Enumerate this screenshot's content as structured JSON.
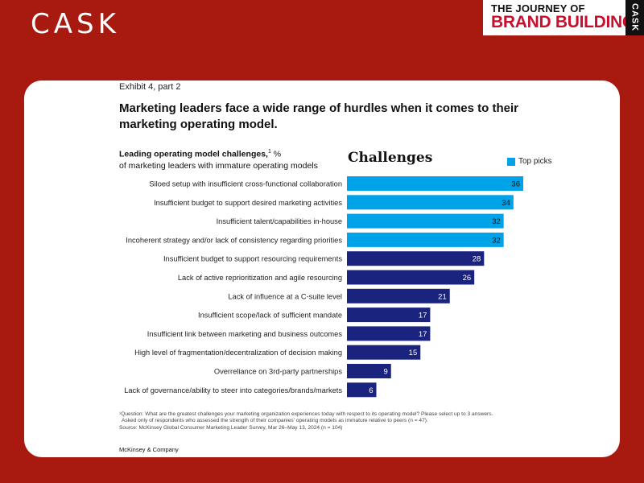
{
  "header": {
    "logo_text": "CASK",
    "brand_line1": "THE JOURNEY OF",
    "brand_line2": "BRAND BUILDING",
    "brand_side": "CASK"
  },
  "exhibit": {
    "label": "Exhibit 4, part 2",
    "headline": "Marketing leaders face a wide range of hurdles when it comes to their marketing operating model."
  },
  "chart_data": {
    "type": "bar",
    "orientation": "horizontal",
    "title": "Challenges",
    "subtitle_bold": "Leading operating model challenges,",
    "subtitle_sup": "1",
    "subtitle_unit": " %",
    "subtitle_line2": "of marketing leaders with immature operating models",
    "legend": [
      {
        "name": "Top picks",
        "color": "#00a3e8"
      }
    ],
    "legend_position": "top-right",
    "categories": [
      "Siloed setup with insufficient cross-functional collaboration",
      "Insufficient budget to support desired marketing activities",
      "Insufficient talent/capabilities in-house",
      "Incoherent strategy and/or lack of consistency regarding priorities",
      "Insufficient budget to support resourcing requirements",
      "Lack of active reprioritization and agile resourcing",
      "Lack of influence at a C-suite level",
      "Insufficient scope/lack of sufficient mandate",
      "Insufficient link between marketing and business outcomes",
      "High level of fragmentation/decentralization of decision making",
      "Overreliance on 3rd-party partnerships",
      "Lack of governance/ability to steer into categories/brands/markets"
    ],
    "values": [
      36,
      34,
      32,
      32,
      28,
      26,
      21,
      17,
      17,
      15,
      9,
      6
    ],
    "top_pick": [
      true,
      true,
      true,
      true,
      false,
      false,
      false,
      false,
      false,
      false,
      false,
      false
    ],
    "colors": {
      "top_pick": "#00a3e8",
      "other": "#1a237e"
    },
    "xlim": [
      0,
      36
    ],
    "grid": false
  },
  "footnote": {
    "line1": "¹Question: What are the greatest challenges your marketing organization experiences today with respect to its operating model? Please select up to 3 answers.",
    "line2": "Asked only of respondents who assessed the strength of their companies' operating models as immature relative to peers (n = 47).",
    "line3": "Source: McKinsey Global Consumer Marketing Leader Survey, Mar 26–May 13, 2024 (n = 104)",
    "company": "McKinsey & Company"
  }
}
